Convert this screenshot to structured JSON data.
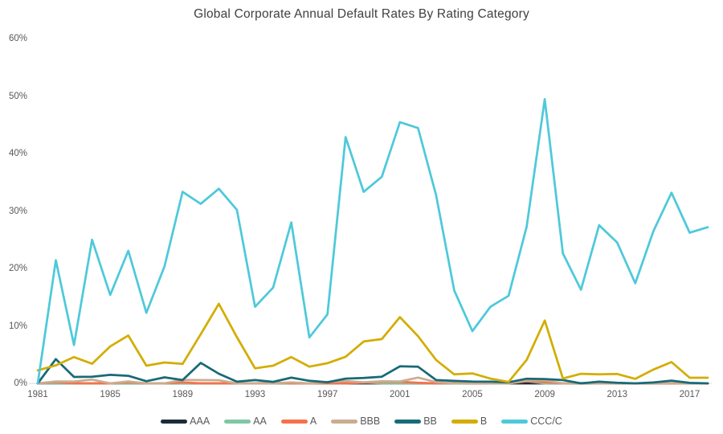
{
  "colors": {
    "background": "#ffffff",
    "title_text": "#404040",
    "axis_text": "#595959",
    "axis_line": "#d9d9d9"
  },
  "axes": {
    "y": {
      "ticks": [
        {
          "label": "0%",
          "value": 0
        },
        {
          "label": "10%",
          "value": 10
        },
        {
          "label": "20%",
          "value": 20
        },
        {
          "label": "30%",
          "value": 30
        },
        {
          "label": "40%",
          "value": 40
        },
        {
          "label": "50%",
          "value": 50
        },
        {
          "label": "60%",
          "value": 60
        }
      ]
    },
    "x": {
      "ticks": [
        {
          "label": "1981",
          "value": 1981
        },
        {
          "label": "1985",
          "value": 1985
        },
        {
          "label": "1989",
          "value": 1989
        },
        {
          "label": "1993",
          "value": 1993
        },
        {
          "label": "1997",
          "value": 1997
        },
        {
          "label": "2001",
          "value": 2001
        },
        {
          "label": "2005",
          "value": 2005
        },
        {
          "label": "2009",
          "value": 2009
        },
        {
          "label": "2013",
          "value": 2013
        },
        {
          "label": "2017",
          "value": 2017
        }
      ]
    }
  },
  "chart_data": {
    "type": "line",
    "title": "Global Corporate Annual Default Rates By Rating Category",
    "xlabel": "",
    "ylabel": "",
    "ylim": [
      0,
      60
    ],
    "y_unit": "%",
    "grid": false,
    "legend_position": "bottom",
    "x": [
      1981,
      1982,
      1983,
      1984,
      1985,
      1986,
      1987,
      1988,
      1989,
      1990,
      1991,
      1992,
      1993,
      1994,
      1995,
      1996,
      1997,
      1998,
      1999,
      2000,
      2001,
      2002,
      2003,
      2004,
      2005,
      2006,
      2007,
      2008,
      2009,
      2010,
      2011,
      2012,
      2013,
      2014,
      2015,
      2016,
      2017,
      2018
    ],
    "series": [
      {
        "name": "AAA",
        "color": "#1c2b3a",
        "values": [
          0,
          0,
          0,
          0,
          0,
          0,
          0,
          0,
          0,
          0,
          0,
          0,
          0,
          0,
          0,
          0,
          0,
          0,
          0,
          0,
          0,
          0,
          0,
          0,
          0,
          0,
          0,
          0,
          0,
          0,
          0,
          0,
          0,
          0,
          0,
          0,
          0,
          0
        ]
      },
      {
        "name": "AA",
        "color": "#7fc7a5",
        "values": [
          0,
          0,
          0,
          0,
          0,
          0,
          0,
          0,
          0,
          0,
          0,
          0,
          0,
          0,
          0,
          0,
          0,
          0,
          0.17,
          0,
          0,
          0,
          0,
          0,
          0,
          0,
          0,
          0.38,
          0,
          0,
          0,
          0,
          0,
          0,
          0,
          0,
          0,
          0
        ]
      },
      {
        "name": "A",
        "color": "#f5714b",
        "values": [
          0,
          0.21,
          0,
          0,
          0,
          0.18,
          0,
          0,
          0.18,
          0,
          0,
          0,
          0,
          0.14,
          0,
          0,
          0,
          0,
          0.12,
          0.27,
          0.27,
          0.11,
          0,
          0.08,
          0,
          0,
          0,
          0.39,
          0.22,
          0,
          0,
          0,
          0,
          0,
          0,
          0,
          0,
          0
        ]
      },
      {
        "name": "BBB",
        "color": "#ccac90",
        "values": [
          0,
          0.34,
          0.32,
          0.66,
          0,
          0.33,
          0,
          0,
          0.6,
          0.58,
          0.55,
          0,
          0,
          0,
          0.17,
          0,
          0.25,
          0.41,
          0.2,
          0.37,
          0.34,
          1.01,
          0.23,
          0,
          0.07,
          0,
          0,
          0.49,
          0.55,
          0,
          0.07,
          0,
          0,
          0,
          0.06,
          0.06,
          0,
          0
        ]
      },
      {
        "name": "BB",
        "color": "#186a77",
        "values": [
          0,
          4.22,
          1.12,
          1.14,
          1.48,
          1.31,
          0.38,
          1.05,
          0.57,
          3.56,
          1.68,
          0.3,
          0.58,
          0.27,
          0.99,
          0.45,
          0.19,
          0.82,
          0.95,
          1.16,
          2.96,
          2.89,
          0.58,
          0.44,
          0.31,
          0.3,
          0.2,
          0.81,
          0.75,
          0.58,
          0,
          0.3,
          0.1,
          0,
          0.16,
          0.47,
          0.08,
          0
        ]
      },
      {
        "name": "B",
        "color": "#d3ad00",
        "values": [
          2.27,
          3.13,
          4.58,
          3.41,
          6.44,
          8.33,
          3.08,
          3.63,
          3.38,
          8.56,
          13.84,
          8.04,
          2.62,
          3.08,
          4.58,
          2.91,
          3.51,
          4.63,
          7.29,
          7.7,
          11.53,
          8.21,
          4.07,
          1.56,
          1.74,
          0.82,
          0.25,
          4.09,
          10.94,
          0.86,
          1.67,
          1.57,
          1.64,
          0.78,
          2.4,
          3.7,
          0.98,
          0.98
        ]
      },
      {
        "name": "CCC/C",
        "color": "#4ec9da",
        "values": [
          0,
          21.43,
          6.67,
          25,
          15.38,
          23.08,
          12.28,
          20.37,
          33.33,
          31.25,
          33.87,
          30.19,
          13.33,
          16.67,
          28,
          8,
          12,
          42.86,
          33.33,
          35.96,
          45.45,
          44.44,
          32.73,
          16.18,
          9.09,
          13.33,
          15.24,
          27.27,
          49.46,
          22.62,
          16.3,
          27.52,
          24.5,
          17.42,
          26.51,
          33.17,
          26.23,
          27.18
        ]
      }
    ]
  }
}
